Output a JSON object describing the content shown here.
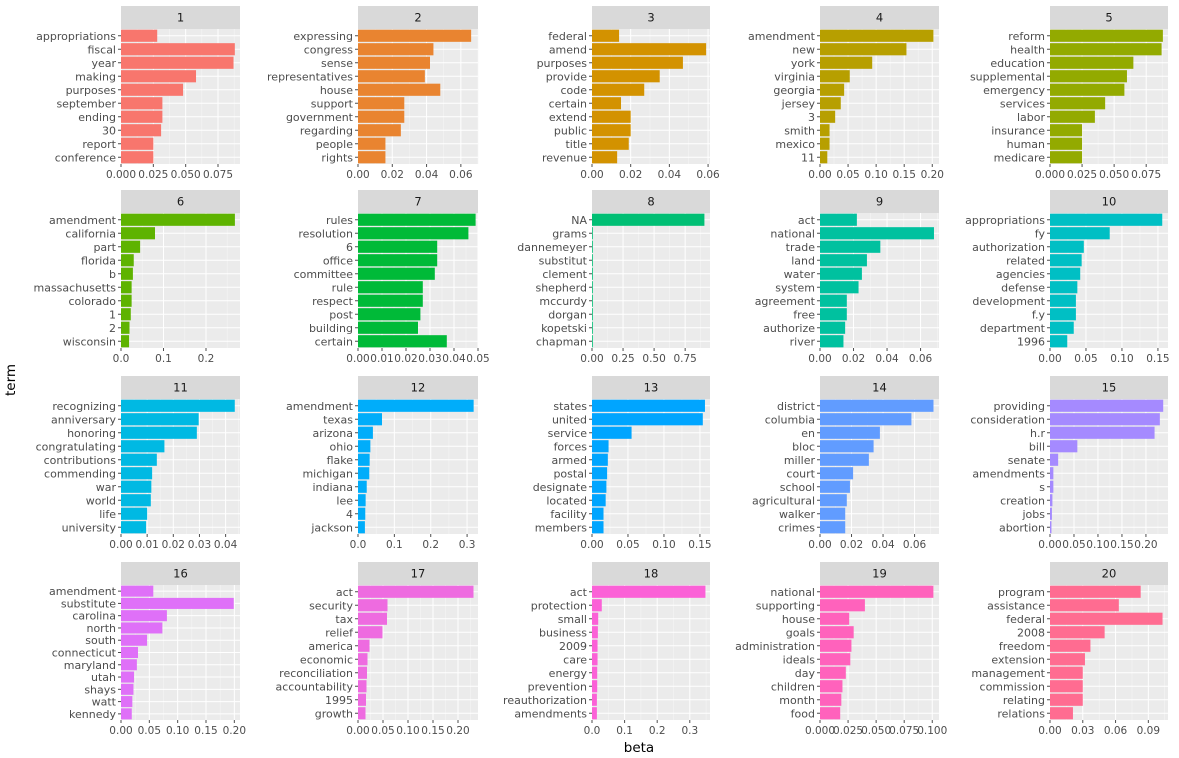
{
  "chart_data": {
    "type": "bar",
    "orientation": "horizontal",
    "facet_layout": {
      "columns": 5,
      "rows": 4
    },
    "xlabel": "beta",
    "ylabel": "term",
    "grid": true,
    "legend": "none",
    "panels": [
      {
        "facet": "1",
        "color": "#F8766D",
        "xlim": [
          0,
          0.092
        ],
        "ticks": [
          0,
          0.025,
          0.05,
          0.075
        ],
        "tick_labels": [
          "0.000",
          "0.025",
          "0.050",
          "0.075"
        ],
        "terms": [
          "appropriations",
          "fiscal",
          "year",
          "making",
          "purposes",
          "september",
          "ending",
          "30",
          "report",
          "conference"
        ],
        "values": [
          0.028,
          0.088,
          0.087,
          0.058,
          0.048,
          0.032,
          0.032,
          0.031,
          0.025,
          0.025
        ]
      },
      {
        "facet": "2",
        "color": "#E98430",
        "xlim": [
          0,
          0.07
        ],
        "ticks": [
          0,
          0.02,
          0.04,
          0.06
        ],
        "tick_labels": [
          "0.00",
          "0.02",
          "0.04",
          "0.06"
        ],
        "terms": [
          "expressing",
          "congress",
          "sense",
          "representatives",
          "house",
          "support",
          "government",
          "regarding",
          "people",
          "rights"
        ],
        "values": [
          0.066,
          0.044,
          0.042,
          0.039,
          0.048,
          0.027,
          0.027,
          0.025,
          0.016,
          0.016
        ]
      },
      {
        "facet": "3",
        "color": "#D39200",
        "xlim": [
          0,
          0.061
        ],
        "ticks": [
          0,
          0.02,
          0.04,
          0.06
        ],
        "tick_labels": [
          "0.00",
          "0.02",
          "0.04",
          "0.06"
        ],
        "terms": [
          "federal",
          "amend",
          "purposes",
          "provide",
          "code",
          "certain",
          "extend",
          "public",
          "title",
          "revenue"
        ],
        "values": [
          0.014,
          0.059,
          0.047,
          0.035,
          0.027,
          0.015,
          0.02,
          0.02,
          0.019,
          0.013
        ]
      },
      {
        "facet": "4",
        "color": "#B79F00",
        "xlim": [
          0,
          0.212
        ],
        "ticks": [
          0,
          0.05,
          0.1,
          0.15,
          0.2
        ],
        "tick_labels": [
          "0.00",
          "0.05",
          "0.10",
          "0.15",
          "0.20"
        ],
        "terms": [
          "amendment",
          "new",
          "york",
          "virginia",
          "georgia",
          "jersey",
          "3",
          "smith",
          "mexico",
          "11"
        ],
        "values": [
          0.202,
          0.154,
          0.093,
          0.053,
          0.043,
          0.037,
          0.027,
          0.017,
          0.017,
          0.013
        ]
      },
      {
        "facet": "5",
        "color": "#93AA00",
        "xlim": [
          0,
          0.092
        ],
        "ticks": [
          0,
          0.025,
          0.05,
          0.075
        ],
        "tick_labels": [
          "0.000",
          "0.025",
          "0.050",
          "0.075"
        ],
        "terms": [
          "reform",
          "health",
          "education",
          "supplemental",
          "emergency",
          "services",
          "labor",
          "insurance",
          "human",
          "medicare"
        ],
        "values": [
          0.088,
          0.087,
          0.065,
          0.06,
          0.058,
          0.043,
          0.035,
          0.025,
          0.025,
          0.025
        ]
      },
      {
        "facet": "6",
        "color": "#5EB300",
        "xlim": [
          0,
          0.28
        ],
        "ticks": [
          0,
          0.1,
          0.2
        ],
        "tick_labels": [
          "0.0",
          "0.1",
          "0.2"
        ],
        "terms": [
          "amendment",
          "california",
          "part",
          "florida",
          "b",
          "massachusetts",
          "colorado",
          "1",
          "2",
          "wisconsin"
        ],
        "values": [
          0.268,
          0.08,
          0.045,
          0.03,
          0.028,
          0.025,
          0.025,
          0.023,
          0.02,
          0.019
        ]
      },
      {
        "facet": "7",
        "color": "#00BA38",
        "xlim": [
          0,
          0.05
        ],
        "ticks": [
          0,
          0.01,
          0.02,
          0.03,
          0.04,
          0.05
        ],
        "tick_labels": [
          "0.00",
          "0.01",
          "0.02",
          "0.03",
          "0.04",
          "0.05"
        ],
        "terms": [
          "rules",
          "resolution",
          "6",
          "office",
          "committee",
          "rule",
          "respect",
          "post",
          "building",
          "certain"
        ],
        "values": [
          0.049,
          0.046,
          0.033,
          0.033,
          0.032,
          0.027,
          0.027,
          0.026,
          0.025,
          0.037
        ]
      },
      {
        "facet": "8",
        "color": "#00BF74",
        "xlim": [
          0,
          0.95
        ],
        "ticks": [
          0,
          0.25,
          0.5,
          0.75
        ],
        "tick_labels": [
          "0.00",
          "0.25",
          "0.50",
          "0.75"
        ],
        "terms": [
          "NA",
          "grams",
          "dannemeyer",
          "substitut",
          "clement",
          "shepherd",
          "mccurdy",
          "dorgan",
          "kopetski",
          "chapman"
        ],
        "values": [
          0.905,
          0.005,
          0.005,
          0.005,
          0.005,
          0.005,
          0.005,
          0.005,
          0.005,
          0.005
        ]
      },
      {
        "facet": "9",
        "color": "#00C19F",
        "xlim": [
          0,
          0.071
        ],
        "ticks": [
          0,
          0.02,
          0.04,
          0.06
        ],
        "tick_labels": [
          "0.00",
          "0.02",
          "0.04",
          "0.06"
        ],
        "terms": [
          "act",
          "national",
          "trade",
          "land",
          "water",
          "system",
          "agreement",
          "free",
          "authorize",
          "river"
        ],
        "values": [
          0.022,
          0.068,
          0.036,
          0.028,
          0.025,
          0.023,
          0.016,
          0.016,
          0.015,
          0.014
        ]
      },
      {
        "facet": "10",
        "color": "#00BFC4",
        "xlim": [
          0,
          0.164
        ],
        "ticks": [
          0,
          0.05,
          0.1,
          0.15
        ],
        "tick_labels": [
          "0.00",
          "0.05",
          "0.10",
          "0.15"
        ],
        "terms": [
          "appropriations",
          "fy",
          "authorization",
          "related",
          "agencies",
          "defense",
          "development",
          "f.y",
          "department",
          "1996"
        ],
        "values": [
          0.156,
          0.083,
          0.047,
          0.044,
          0.042,
          0.038,
          0.036,
          0.036,
          0.033,
          0.024
        ]
      },
      {
        "facet": "11",
        "color": "#00B9E3",
        "xlim": [
          0,
          0.0455
        ],
        "ticks": [
          0,
          0.01,
          0.02,
          0.03,
          0.04
        ],
        "tick_labels": [
          "0.00",
          "0.01",
          "0.02",
          "0.03",
          "0.04"
        ],
        "terms": [
          "recognizing",
          "anniversary",
          "honoring",
          "congratulating",
          "contributions",
          "commending",
          "war",
          "world",
          "life",
          "university"
        ],
        "values": [
          0.0435,
          0.0297,
          0.029,
          0.0166,
          0.0137,
          0.0119,
          0.0116,
          0.0114,
          0.01,
          0.0096
        ]
      },
      {
        "facet": "12",
        "color": "#00ADFA",
        "xlim": [
          0,
          0.33
        ],
        "ticks": [
          0,
          0.1,
          0.2,
          0.3
        ],
        "tick_labels": [
          "0.0",
          "0.1",
          "0.2",
          "0.3"
        ],
        "terms": [
          "amendment",
          "texas",
          "arizona",
          "ohio",
          "flake",
          "michigan",
          "indiana",
          "lee",
          "4",
          "jackson"
        ],
        "values": [
          0.318,
          0.066,
          0.041,
          0.034,
          0.032,
          0.031,
          0.024,
          0.021,
          0.02,
          0.019
        ]
      },
      {
        "facet": "13",
        "color": "#00A5FF",
        "xlim": [
          0,
          0.164
        ],
        "ticks": [
          0,
          0.05,
          0.1,
          0.15
        ],
        "tick_labels": [
          "0.00",
          "0.05",
          "0.10",
          "0.15"
        ],
        "terms": [
          "states",
          "united",
          "service",
          "forces",
          "armed",
          "postal",
          "designate",
          "located",
          "facility",
          "members"
        ],
        "values": [
          0.157,
          0.154,
          0.055,
          0.023,
          0.022,
          0.021,
          0.02,
          0.019,
          0.016,
          0.016
        ]
      },
      {
        "facet": "14",
        "color": "#619CFF",
        "xlim": [
          0,
          0.0755
        ],
        "ticks": [
          0,
          0.02,
          0.04,
          0.06
        ],
        "tick_labels": [
          "0.00",
          "0.02",
          "0.04",
          "0.06"
        ],
        "terms": [
          "district",
          "columbia",
          "en",
          "bloc",
          "miller",
          "court",
          "school",
          "agricultural",
          "walker",
          "crimes"
        ],
        "values": [
          0.072,
          0.058,
          0.038,
          0.034,
          0.031,
          0.021,
          0.019,
          0.017,
          0.016,
          0.016
        ]
      },
      {
        "facet": "15",
        "color": "#A58AFF",
        "xlim": [
          0,
          0.246
        ],
        "ticks": [
          0,
          0.05,
          0.1,
          0.15,
          0.2
        ],
        "tick_labels": [
          "0.00",
          "0.05",
          "0.10",
          "0.15",
          "0.20"
        ],
        "terms": [
          "providing",
          "consideration",
          "h.r",
          "bill",
          "senate",
          "amendments",
          "s",
          "creation",
          "jobs",
          "abortion"
        ],
        "values": [
          0.236,
          0.229,
          0.218,
          0.057,
          0.017,
          0.007,
          0.007,
          0.005,
          0.004,
          0.003
        ]
      },
      {
        "facet": "16",
        "color": "#DF70F8",
        "xlim": [
          0,
          0.21
        ],
        "ticks": [
          0,
          0.05,
          0.1,
          0.15,
          0.2
        ],
        "tick_labels": [
          "0.00",
          "0.05",
          "0.10",
          "0.15",
          "0.20"
        ],
        "terms": [
          "amendment",
          "substitute",
          "carolina",
          "north",
          "south",
          "connecticut",
          "maryland",
          "utah",
          "shays",
          "watt",
          "kennedy"
        ],
        "values": [
          0.057,
          0.199,
          0.081,
          0.073,
          0.046,
          0.03,
          0.028,
          0.023,
          0.022,
          0.02,
          0.019
        ]
      },
      {
        "facet": "17",
        "color": "#EE6BE0",
        "xlim": [
          0,
          0.24
        ],
        "ticks": [
          0,
          0.05,
          0.1,
          0.15,
          0.2
        ],
        "tick_labels": [
          "0.00",
          "0.05",
          "0.10",
          "0.15",
          "0.20"
        ],
        "terms": [
          "act",
          "security",
          "tax",
          "relief",
          "america",
          "economic",
          "reconciliation",
          "accountability",
          "1995",
          "growth"
        ],
        "values": [
          0.231,
          0.059,
          0.058,
          0.049,
          0.023,
          0.019,
          0.018,
          0.017,
          0.016,
          0.015
        ]
      },
      {
        "facet": "18",
        "color": "#FB61D7",
        "xlim": [
          0,
          0.362
        ],
        "ticks": [
          0,
          0.1,
          0.2,
          0.3
        ],
        "tick_labels": [
          "0.0",
          "0.1",
          "0.2",
          "0.3"
        ],
        "terms": [
          "act",
          "protection",
          "small",
          "business",
          "2009",
          "care",
          "energy",
          "prevention",
          "reauthorization",
          "amendments"
        ],
        "values": [
          0.348,
          0.03,
          0.019,
          0.018,
          0.017,
          0.017,
          0.016,
          0.016,
          0.015,
          0.015
        ]
      },
      {
        "facet": "19",
        "color": "#FF62BC",
        "xlim": [
          0,
          0.106
        ],
        "ticks": [
          0,
          0.025,
          0.05,
          0.075,
          0.1
        ],
        "tick_labels": [
          "0.000",
          "0.025",
          "0.050",
          "0.075",
          "0.100"
        ],
        "terms": [
          "national",
          "supporting",
          "house",
          "goals",
          "administration",
          "ideals",
          "day",
          "children",
          "month",
          "food"
        ],
        "values": [
          0.101,
          0.04,
          0.026,
          0.03,
          0.028,
          0.027,
          0.023,
          0.02,
          0.019,
          0.018
        ]
      },
      {
        "facet": "20",
        "color": "#FF6C91",
        "xlim": [
          0,
          0.108
        ],
        "ticks": [
          0,
          0.03,
          0.06,
          0.09
        ],
        "tick_labels": [
          "0.00",
          "0.03",
          "0.06",
          "0.09"
        ],
        "terms": [
          "program",
          "assistance",
          "federal",
          "2008",
          "freedom",
          "extension",
          "management",
          "commission",
          "relating",
          "relations"
        ],
        "values": [
          0.083,
          0.063,
          0.103,
          0.05,
          0.037,
          0.032,
          0.03,
          0.03,
          0.03,
          0.021
        ]
      }
    ]
  }
}
